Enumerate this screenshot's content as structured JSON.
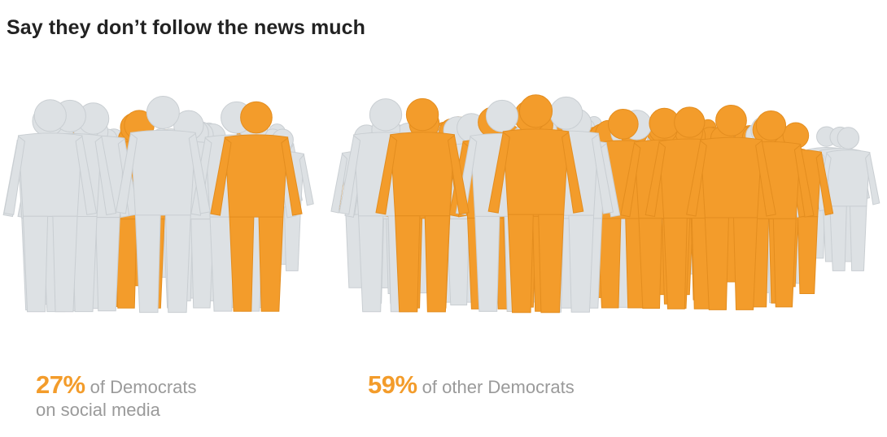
{
  "title": "Say they don’t follow the news much",
  "colors": {
    "highlight": "#f39c2b",
    "other": "#dde1e4",
    "other_stroke": "#c9ced2",
    "title": "#222222",
    "caption": "#9a9a9a"
  },
  "chart_data": {
    "type": "pictogram",
    "title": "Say they don’t follow the news much",
    "series": [
      {
        "name": "Democrats on social media",
        "percent": 27,
        "label_value": "27%",
        "label_text": "of Democrats",
        "label_text_line2": "on social media"
      },
      {
        "name": "other Democrats",
        "percent": 59,
        "label_value": "59%",
        "label_text": "of other Democrats",
        "label_text_line2": ""
      }
    ]
  }
}
